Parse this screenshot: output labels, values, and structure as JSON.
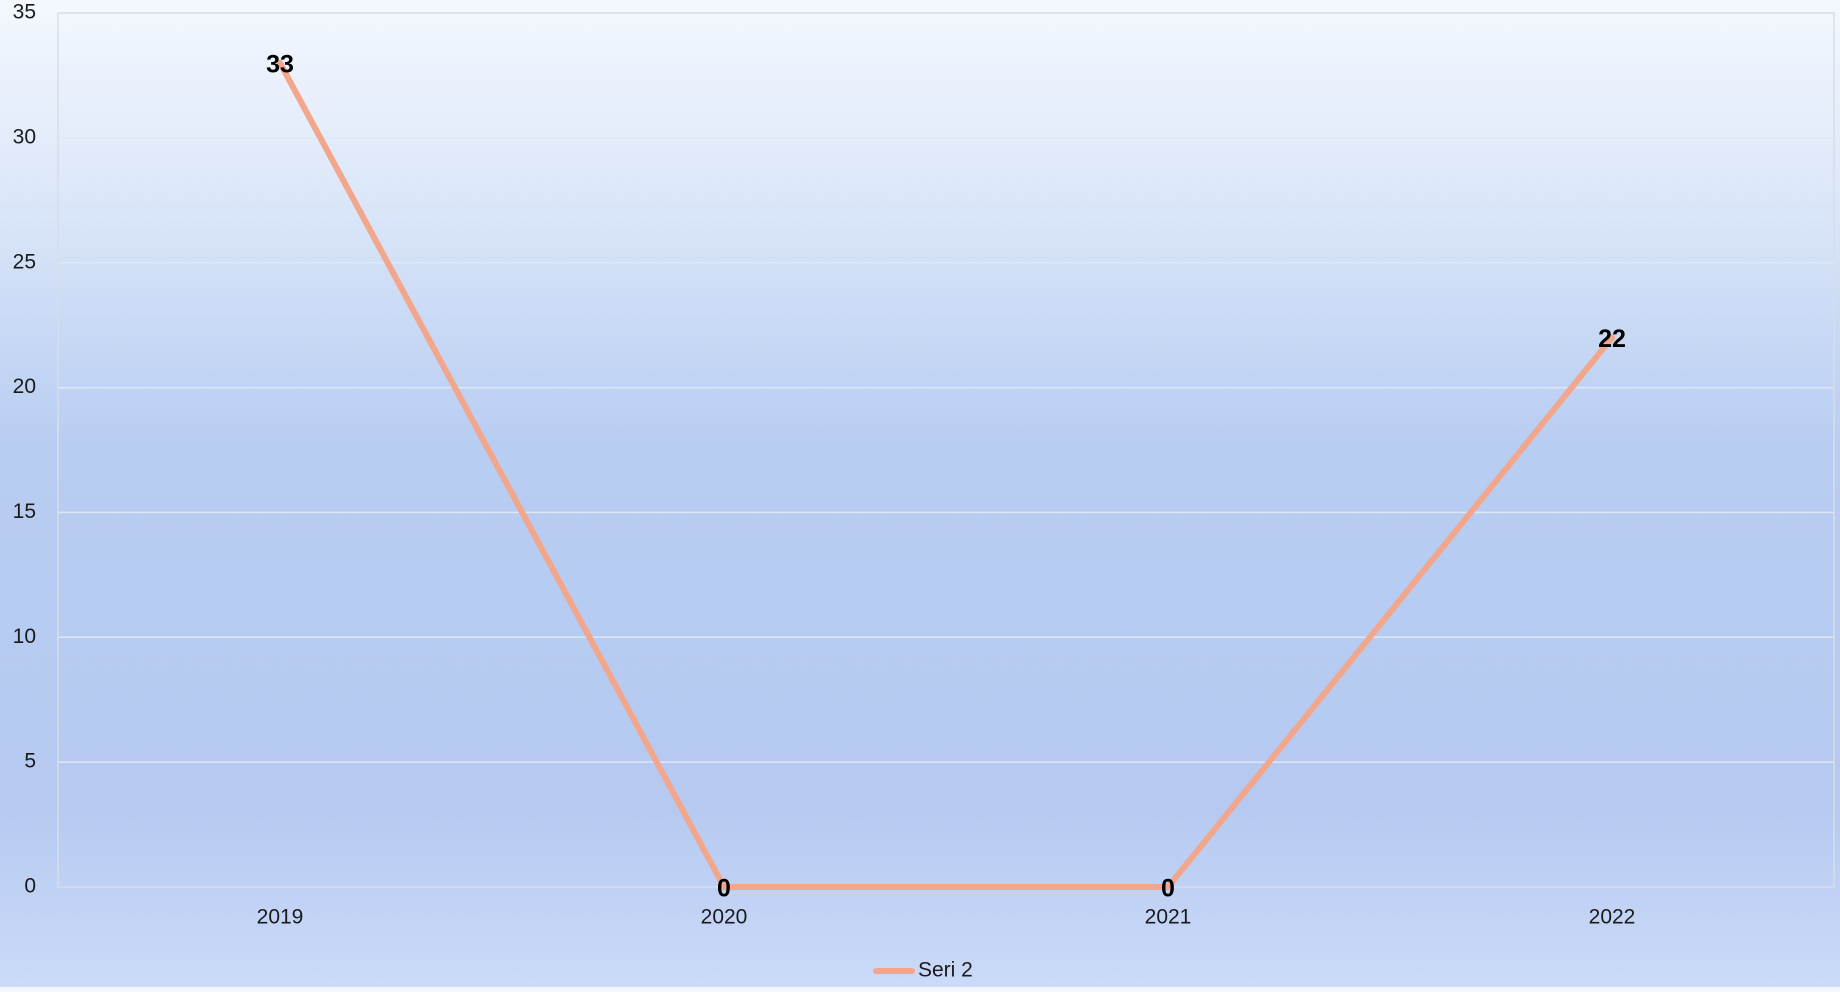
{
  "chart_data": {
    "type": "line",
    "categories": [
      "2019",
      "2020",
      "2021",
      "2022"
    ],
    "series": [
      {
        "name": "Seri 2",
        "values": [
          33,
          0,
          0,
          22
        ],
        "color": "#f2a68b"
      }
    ],
    "data_labels": [
      "33",
      "0",
      "0",
      "22"
    ],
    "y_ticks": [
      "0",
      "5",
      "10",
      "15",
      "20",
      "25",
      "30",
      "35"
    ],
    "ylim": [
      0,
      35
    ],
    "grid": true,
    "gridline_color": "#dfe7f3",
    "axis_color": "#d8dde6",
    "legend_position": "bottom",
    "title": "",
    "xlabel": "",
    "ylabel": ""
  }
}
